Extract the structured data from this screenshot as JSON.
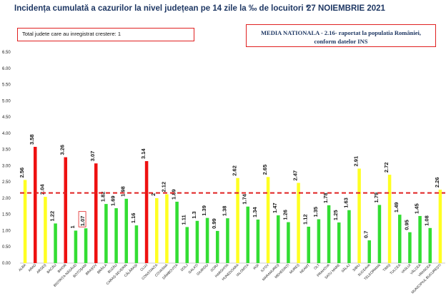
{
  "header": {
    "title": "Incidența cumulată a cazurilor la nivel județean pe 14 zile la ‰ de locuitori *",
    "date": "27 NOIEMBRIE 2021",
    "info_box": "Total judete care au inregistrat crestere: 1",
    "national_box_line1": "MEDIA NATIONALA - 2.16-  raportat la populatia României,",
    "national_box_line2": "conform datelor INS"
  },
  "colors": {
    "red": "#ee1111",
    "yellow": "#ffff22",
    "green": "#33dd33",
    "reference_line": "#e02020",
    "title": "#1f3864"
  },
  "chart_data": {
    "type": "bar",
    "ylim": [
      0,
      6.5
    ],
    "yticks": [
      "0.00",
      "0.50",
      "1.00",
      "1.50",
      "2.00",
      "2.50",
      "3.00",
      "3.50",
      "4.00",
      "4.50",
      "5.00",
      "5.50",
      "6.00",
      "6.50"
    ],
    "reference_value": 2.16,
    "categories": [
      "ALBA",
      "ARAD",
      "ARGEȘ",
      "BACĂU",
      "BIHOR",
      "BISTRIȚA-NĂSĂUD",
      "BOTOȘANI",
      "BRAȘOV",
      "BRĂILA",
      "BUZĂU",
      "CARAȘ-SEVERIN",
      "CĂLĂRAȘI",
      "CLUJ",
      "CONSTANȚA",
      "COVASNA",
      "DÂMBOVIȚA",
      "DOLJ",
      "GALAȚI",
      "GIURGIU",
      "GORJ",
      "HARGHITA",
      "HUNEDOARA",
      "IALOMIȚA",
      "IAȘI",
      "ILFOV",
      "MARAMUREȘ",
      "MEHEDINȚI",
      "MUREȘ",
      "NEAMȚ",
      "OLT",
      "PRAHOVA",
      "SATU MARE",
      "SĂLAJ",
      "SIBIU",
      "SUCEAVA",
      "TELEORMAN",
      "TIMIȘ",
      "TULCEA",
      "VASLUI",
      "VÂLCEA",
      "VRANCEA",
      "MUNICIPIUL BUCUREȘTI"
    ],
    "values": [
      2.56,
      3.58,
      2.04,
      1.22,
      3.26,
      1,
      1.07,
      3.07,
      1.82,
      1.69,
      1.98,
      1.16,
      3.14,
      2,
      2.12,
      1.89,
      1.11,
      1.3,
      1.39,
      0.99,
      1.38,
      2.62,
      1.74,
      1.34,
      2.65,
      1.47,
      1.26,
      2.47,
      1.12,
      1.35,
      1.78,
      1.25,
      1.63,
      2.91,
      0.7,
      1.79,
      2.72,
      1.49,
      0.95,
      1.45,
      1.08,
      2.26
    ],
    "value_labels": [
      "2.56",
      "3.58",
      "2.04",
      "1.22",
      "3.26",
      "1",
      "1.07",
      "3.07",
      "1.82",
      "1.69",
      "1.98",
      "1.16",
      "3.14",
      "2",
      "2.12",
      "1.89",
      "1.11",
      "1.3",
      "1.39",
      "0.99",
      "1.38",
      "2.62",
      "1.74",
      "1.34",
      "2.65",
      "1.47",
      "1.26",
      "2.47",
      "1.12",
      "1.35",
      "1.78",
      "1.25",
      "1.63",
      "2.91",
      "0.7",
      "1.79",
      "2.72",
      "1.49",
      "0.95",
      "1.45",
      "1.08",
      "2.26"
    ],
    "bar_colors": [
      "yellow",
      "red",
      "yellow",
      "green",
      "red",
      "green",
      "green",
      "red",
      "green",
      "green",
      "green",
      "green",
      "red",
      "yellow",
      "yellow",
      "green",
      "green",
      "green",
      "green",
      "green",
      "green",
      "yellow",
      "green",
      "green",
      "yellow",
      "green",
      "green",
      "yellow",
      "green",
      "green",
      "green",
      "green",
      "green",
      "yellow",
      "green",
      "green",
      "yellow",
      "green",
      "green",
      "green",
      "green",
      "yellow"
    ],
    "highlighted_label_index": 6,
    "grid": false,
    "legend": "none"
  }
}
